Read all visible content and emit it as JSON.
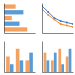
{
  "chart_data": [
    {
      "type": "bar",
      "orientation": "horizontal",
      "categories": [
        null,
        null,
        null,
        null,
        null
      ],
      "values": [
        3,
        5,
        2,
        4,
        6
      ],
      "colors": [
        "#f4a261",
        "#5b9bd5",
        "#f4a261",
        "#5b9bd5",
        "#f4a261"
      ],
      "xlim": [
        0,
        8
      ],
      "tick_labels": false
    },
    {
      "type": "line",
      "x": [
        0,
        1,
        2,
        3,
        4,
        5
      ],
      "xlim": [
        0,
        5
      ],
      "ylim": [
        0,
        1
      ],
      "marker": "circle",
      "series": [
        {
          "color": "#3a7dc9",
          "values": [
            0.9,
            0.7,
            0.5,
            0.4,
            0.35,
            0.3
          ]
        },
        {
          "color": "#f08c2e",
          "values": [
            0.8,
            0.6,
            0.45,
            0.3,
            0.25,
            0.2
          ]
        }
      ],
      "tick_labels": false
    },
    {
      "type": "bar",
      "categories": [
        null,
        null,
        null
      ],
      "ylim": [
        0,
        8
      ],
      "series": [
        {
          "color": "#f4a261",
          "values": [
            4,
            6,
            3
          ]
        },
        {
          "color": "#5b9bd5",
          "values": [
            2,
            3,
            5
          ]
        }
      ],
      "tick_labels": false
    },
    {
      "type": "bar",
      "categories": [
        null,
        null,
        null,
        null
      ],
      "ylim": [
        0,
        8
      ],
      "series": [
        {
          "color": "#f4a261",
          "values": [
            5,
            3,
            6,
            4
          ]
        },
        {
          "color": "#5b9bd5",
          "values": [
            3,
            5,
            2,
            6
          ]
        }
      ],
      "tick_labels": false
    }
  ]
}
